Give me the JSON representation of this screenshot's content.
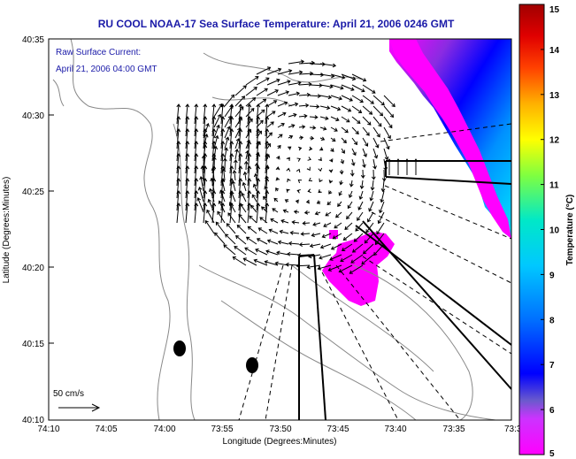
{
  "title": "RU COOL  NOAA-17  Sea Surface Temperature:  April 21, 2006 0246 GMT",
  "overlay": {
    "line1": "Raw Surface Current:",
    "line2": "April 21, 2006 04:00 GMT",
    "scale_label": "50 cm/s"
  },
  "axes": {
    "xlabel": "Longitude (Degrees:Minutes)",
    "ylabel": "Latitude (Degrees:Minutes)",
    "x_ticks": [
      "74:10",
      "74:05",
      "74:00",
      "73:55",
      "73:50",
      "73:45",
      "73:40",
      "73:35",
      "73:3"
    ],
    "y_ticks": [
      "40:35",
      "40:30",
      "40:25",
      "40:20",
      "40:15",
      "40:10"
    ]
  },
  "colorbar": {
    "label": "Temperature (°C)",
    "min": 5,
    "max": 15,
    "ticks": [
      "15",
      "14",
      "13",
      "12",
      "11",
      "10",
      "9",
      "8",
      "7",
      "6",
      "5"
    ]
  },
  "colors": {
    "title": "#1a1aa8",
    "sst_cold": "#ff00ff",
    "sst_warm": "#00e5ff",
    "land_contour": "#888888"
  }
}
